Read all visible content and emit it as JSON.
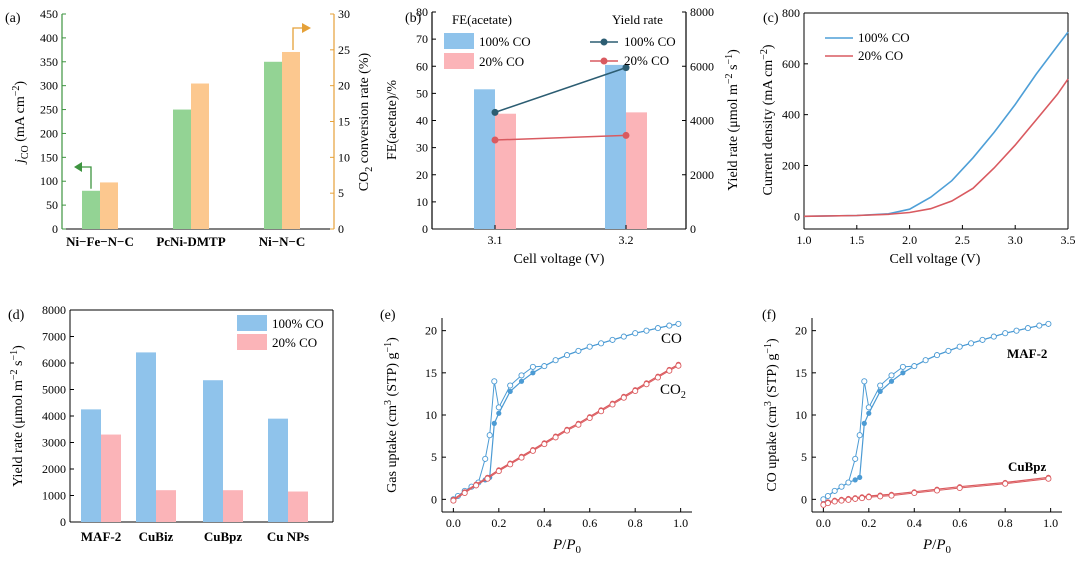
{
  "colors": {
    "green": "#93d394",
    "orange": "#fcc88f",
    "blue": "#8fc3eb",
    "pink": "#fbb4b8",
    "lineBlue": "#4e9fd7",
    "lineRed": "#d95a60",
    "darkTeal": "#2c5d72",
    "redDot": "#d95a60",
    "axisOrange": "#e5a139",
    "axisGreen": "#3e9440",
    "isoBlue": "#4c9bd4",
    "isoRed": "#db5b5f"
  },
  "chart_data": [
    {
      "panel": "a",
      "label": "(a)",
      "type": "bar",
      "categories": [
        "Ni−Fe−N−C",
        "PcNi-DMTP",
        "Ni−N−C"
      ],
      "series": [
        {
          "name": "j_CO",
          "axis": "left",
          "values": [
            80,
            null,
            350
          ]
        },
        {
          "name": "CO2 conversion rate",
          "axis": "right",
          "values": [
            6.5,
            20.3,
            24.7
          ]
        }
      ],
      "left_values_by_category": [
        80,
        250,
        350
      ],
      "ylabel_left": "jCO (mA cm−2)",
      "ylabel_right": "CO2 conversion rate (%)",
      "ylim_left": [
        0,
        450
      ],
      "ylim_right": [
        0,
        30
      ],
      "yticks_left": [
        "0",
        "50",
        "100",
        "150",
        "200",
        "250",
        "300",
        "350",
        "400",
        "450"
      ],
      "yticks_right": [
        "0",
        "5",
        "10",
        "15",
        "20",
        "25",
        "30"
      ]
    },
    {
      "panel": "b",
      "label": "(b)",
      "type": "bar",
      "categories": [
        "3.1",
        "3.2"
      ],
      "xlabel": "Cell voltage (V)",
      "ylabel_left": "FE(acetate)/%",
      "ylabel_right": "Yield rate (μmol m−2 s−1)",
      "ylim_left": [
        0,
        80
      ],
      "ylim_right": [
        0,
        8000
      ],
      "yticks_left": [
        "0",
        "10",
        "20",
        "30",
        "40",
        "50",
        "60",
        "70",
        "80"
      ],
      "yticks_right": [
        "0",
        "2000",
        "4000",
        "6000",
        "8000"
      ],
      "legend_bar_title": "FE(acetate)",
      "legend_line_title": "Yield rate",
      "bar_series": [
        {
          "name": "100% CO",
          "values": [
            51.5,
            60.5
          ]
        },
        {
          "name": "20% CO",
          "values": [
            42.5,
            43.0
          ]
        }
      ],
      "line_series": [
        {
          "name": "100% CO",
          "values": [
            4300,
            5950
          ]
        },
        {
          "name": "20% CO",
          "values": [
            3280,
            3450
          ]
        }
      ]
    },
    {
      "panel": "c",
      "label": "(c)",
      "type": "line",
      "xlabel": "Cell voltage (V)",
      "ylabel": "Current density (mA cm−2)",
      "xlim": [
        1.0,
        3.5
      ],
      "ylim": [
        -50,
        800
      ],
      "xticks": [
        "1.0",
        "1.5",
        "2.0",
        "2.5",
        "3.0",
        "3.5"
      ],
      "yticks": [
        "0",
        "200",
        "400",
        "600",
        "800"
      ],
      "series": [
        {
          "name": "100% CO",
          "x": [
            1.0,
            1.5,
            1.8,
            2.0,
            2.2,
            2.4,
            2.6,
            2.8,
            3.0,
            3.2,
            3.4,
            3.5
          ],
          "y": [
            0,
            3,
            10,
            28,
            75,
            140,
            230,
            330,
            440,
            560,
            670,
            725
          ]
        },
        {
          "name": "20% CO",
          "x": [
            1.0,
            1.5,
            1.8,
            2.0,
            2.2,
            2.4,
            2.6,
            2.8,
            3.0,
            3.2,
            3.4,
            3.5
          ],
          "y": [
            0,
            3,
            8,
            15,
            30,
            60,
            110,
            190,
            280,
            380,
            480,
            540
          ]
        }
      ]
    },
    {
      "panel": "d",
      "label": "(d)",
      "type": "bar",
      "categories": [
        "MAF-2",
        "CuBiz",
        "CuBpz",
        "Cu NPs"
      ],
      "ylabel": "Yield rate (μmol m−2 s−1)",
      "ylim": [
        0,
        8000
      ],
      "yticks": [
        "0",
        "1000",
        "2000",
        "3000",
        "4000",
        "5000",
        "6000",
        "7000",
        "8000"
      ],
      "series": [
        {
          "name": "100% CO",
          "values": [
            4250,
            6400,
            5350,
            3900
          ]
        },
        {
          "name": "20% CO",
          "values": [
            3300,
            1200,
            1200,
            1150
          ]
        }
      ]
    },
    {
      "panel": "e",
      "label": "(e)",
      "type": "scatter",
      "xlabel": "P/P0",
      "ylabel": "Gas uptake (cm3 (STP) g−1)",
      "xlim": [
        -0.05,
        1.05
      ],
      "ylim": [
        -1.5,
        21.5
      ],
      "xticks": [
        "0.0",
        "0.2",
        "0.4",
        "0.6",
        "0.8",
        "1.0"
      ],
      "yticks": [
        "0",
        "5",
        "10",
        "15",
        "20"
      ],
      "series": [
        {
          "name": "CO",
          "x": [
            0.0,
            0.02,
            0.05,
            0.08,
            0.11,
            0.14,
            0.16,
            0.18,
            0.2,
            0.25,
            0.3,
            0.35,
            0.4,
            0.45,
            0.5,
            0.55,
            0.6,
            0.65,
            0.7,
            0.75,
            0.8,
            0.85,
            0.9,
            0.95,
            0.99
          ],
          "y": [
            0.0,
            0.4,
            1.0,
            1.5,
            2.0,
            2.3,
            2.6,
            9.0,
            10.2,
            12.8,
            14.0,
            15.0,
            15.8,
            16.5,
            17.1,
            17.6,
            18.1,
            18.5,
            18.9,
            19.3,
            19.7,
            20.0,
            20.3,
            20.6,
            20.8
          ]
        },
        {
          "name": "CO2",
          "x": [
            0.0,
            0.05,
            0.1,
            0.15,
            0.2,
            0.25,
            0.3,
            0.35,
            0.4,
            0.45,
            0.5,
            0.55,
            0.6,
            0.65,
            0.7,
            0.75,
            0.8,
            0.85,
            0.9,
            0.95,
            0.99
          ],
          "y": [
            0.0,
            0.9,
            1.8,
            2.6,
            3.5,
            4.3,
            5.1,
            5.9,
            6.7,
            7.5,
            8.3,
            9.0,
            9.8,
            10.6,
            11.4,
            12.2,
            13.0,
            13.8,
            14.6,
            15.4,
            16.0
          ]
        }
      ],
      "labels": {
        "CO": "CO",
        "CO2": "CO",
        "CO2_sub": "2"
      }
    },
    {
      "panel": "f",
      "label": "(f)",
      "type": "scatter",
      "xlabel": "P/P0",
      "ylabel": "CO uptake (cm3 (STP) g−1)",
      "xlim": [
        -0.05,
        1.05
      ],
      "ylim": [
        -1.5,
        21.5
      ],
      "xticks": [
        "0.0",
        "0.2",
        "0.4",
        "0.6",
        "0.8",
        "1.0"
      ],
      "yticks": [
        "0",
        "5",
        "10",
        "15",
        "20"
      ],
      "series": [
        {
          "name": "MAF-2",
          "x": [
            0.0,
            0.02,
            0.05,
            0.08,
            0.11,
            0.14,
            0.16,
            0.18,
            0.2,
            0.25,
            0.3,
            0.35,
            0.4,
            0.45,
            0.5,
            0.55,
            0.6,
            0.65,
            0.7,
            0.75,
            0.8,
            0.85,
            0.9,
            0.95,
            0.99
          ],
          "y": [
            0.0,
            0.4,
            1.0,
            1.5,
            2.0,
            2.3,
            2.6,
            9.0,
            10.2,
            12.8,
            14.0,
            15.0,
            15.8,
            16.5,
            17.1,
            17.6,
            18.1,
            18.5,
            18.9,
            19.3,
            19.7,
            20.0,
            20.3,
            20.6,
            20.8
          ]
        },
        {
          "name": "CuBpz",
          "x": [
            0.0,
            0.02,
            0.05,
            0.08,
            0.11,
            0.14,
            0.17,
            0.2,
            0.25,
            0.3,
            0.4,
            0.5,
            0.6,
            0.8,
            0.99
          ],
          "y": [
            -0.5,
            -0.3,
            -0.1,
            0.0,
            0.1,
            0.2,
            0.3,
            0.4,
            0.5,
            0.6,
            0.9,
            1.2,
            1.5,
            2.0,
            2.6
          ]
        }
      ],
      "labels": {
        "MAF-2": "MAF-2",
        "CuBpz": "CuBpz"
      }
    }
  ]
}
